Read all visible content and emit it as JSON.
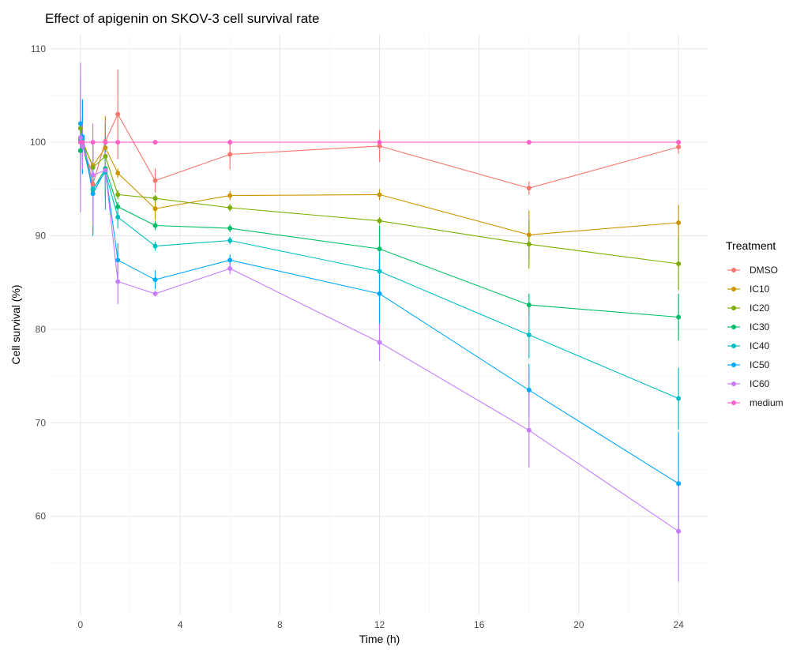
{
  "chart_data": {
    "type": "line",
    "title": "Effect of apigenin on SKOV-3 cell survival rate",
    "xlabel": "Time (h)",
    "ylabel": "Cell survival (%)",
    "xlim": [
      -1.2,
      25.2
    ],
    "ylim": [
      49.5,
      111.5
    ],
    "xticks": [
      0,
      4,
      8,
      12,
      16,
      20,
      24
    ],
    "yticks": [
      60,
      70,
      80,
      90,
      100,
      110
    ],
    "grid": true,
    "legend": {
      "title": "Treatment",
      "position": "right"
    },
    "x": [
      0,
      0.08,
      0.5,
      1,
      1.5,
      3,
      6,
      12,
      18,
      24
    ],
    "series": [
      {
        "name": "DMSO",
        "color": "#F8766D",
        "values": [
          100.2,
          100.5,
          95.5,
          100.1,
          103.0,
          95.9,
          98.7,
          99.6,
          95.1,
          99.5
        ],
        "errors": [
          2.5,
          2.0,
          2.5,
          2.5,
          4.8,
          1.3,
          1.6,
          1.7,
          0.7,
          0.7
        ]
      },
      {
        "name": "IC10",
        "color": "#CD9600",
        "values": [
          100.4,
          99.9,
          97.5,
          99.4,
          96.7,
          92.9,
          94.3,
          94.4,
          90.1,
          91.4
        ],
        "errors": [
          2.0,
          2.0,
          2.0,
          3.4,
          0.5,
          1.2,
          0.5,
          0.6,
          2.6,
          1.9
        ]
      },
      {
        "name": "IC20",
        "color": "#7CAE00",
        "values": [
          101.5,
          100.2,
          97.3,
          98.5,
          94.4,
          94.0,
          93.0,
          91.6,
          89.1,
          87.0
        ],
        "errors": [
          5.4,
          2.5,
          3.0,
          3.5,
          0.5,
          0.4,
          0.4,
          0.4,
          2.6,
          2.8
        ]
      },
      {
        "name": "IC30",
        "color": "#00BE67",
        "values": [
          99.1,
          99.8,
          94.9,
          97.2,
          93.1,
          91.1,
          90.8,
          88.6,
          82.6,
          81.3
        ],
        "errors": [
          2.0,
          2.0,
          2.5,
          3.3,
          0.5,
          0.5,
          0.4,
          2.5,
          1.2,
          2.5
        ]
      },
      {
        "name": "IC40",
        "color": "#00BFC4",
        "values": [
          100.2,
          100.3,
          95.0,
          96.8,
          92.0,
          88.9,
          89.5,
          86.2,
          79.4,
          72.6
        ],
        "errors": [
          4.7,
          2.0,
          4.5,
          4.0,
          1.2,
          0.5,
          0.4,
          2.5,
          2.5,
          3.3
        ]
      },
      {
        "name": "IC50",
        "color": "#00A9FF",
        "values": [
          102.0,
          100.6,
          94.5,
          97.0,
          87.4,
          85.3,
          87.4,
          83.8,
          73.5,
          63.5
        ],
        "errors": [
          2.0,
          4.0,
          4.5,
          3.0,
          1.8,
          1.0,
          0.6,
          3.8,
          2.8,
          5.5
        ]
      },
      {
        "name": "IC60",
        "color": "#C77CFF",
        "values": [
          100.5,
          99.6,
          96.5,
          97.0,
          85.1,
          83.8,
          86.5,
          78.6,
          69.2,
          58.4
        ],
        "errors": [
          8.0,
          2.5,
          5.5,
          2.0,
          2.4,
          0.3,
          0.6,
          2.0,
          4.0,
          5.4
        ]
      },
      {
        "name": "medium",
        "color": "#FF61CC",
        "values": [
          100,
          100,
          100,
          100,
          100,
          100,
          100,
          100,
          100,
          100
        ],
        "errors": [
          0,
          0,
          0,
          0,
          0,
          0,
          0,
          0,
          0,
          0
        ]
      }
    ]
  }
}
